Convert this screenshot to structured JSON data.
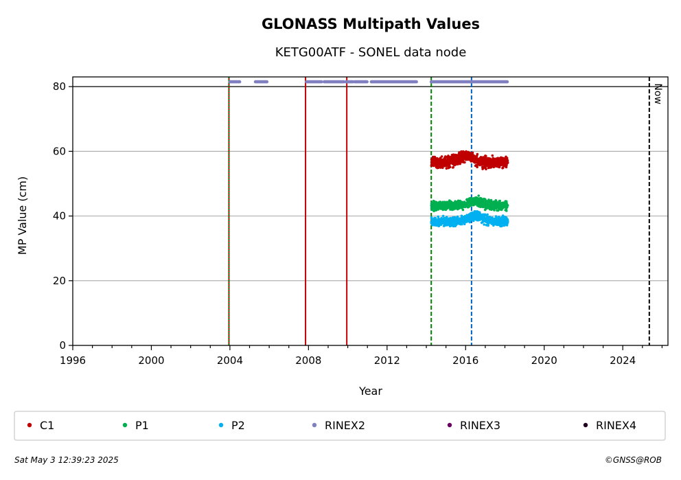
{
  "chart_data": {
    "type": "scatter",
    "title": "GLONASS Multipath Values",
    "subtitle": "KETG00ATF - SONEL data node",
    "xlabel": "Year",
    "ylabel": "MP Value (cm)",
    "xlim": [
      1996,
      2026.3
    ],
    "ylim": [
      0,
      83
    ],
    "xticks": [
      "1996",
      "2000",
      "2004",
      "2008",
      "2012",
      "2016",
      "2020",
      "2024"
    ],
    "yticks": [
      "0",
      "20",
      "40",
      "60",
      "80"
    ],
    "grid": "horizontal",
    "legend_position": "bottom",
    "series": [
      {
        "name": "C1",
        "color": "#c00000",
        "x_range": [
          2014.25,
          2018.15
        ],
        "mean": 56.5,
        "spread": 2.0,
        "peak_year": 2016,
        "peak_value": 58.5
      },
      {
        "name": "P1",
        "color": "#00b050",
        "x_range": [
          2014.25,
          2018.15
        ],
        "mean": 43.2,
        "spread": 1.6,
        "peak_year": 2016.5,
        "peak_value": 44.5
      },
      {
        "name": "P2",
        "color": "#00b0f0",
        "x_range": [
          2014.25,
          2018.15
        ],
        "mean": 38.3,
        "spread": 1.6,
        "peak_year": 2016.5,
        "peak_value": 40.0
      },
      {
        "name": "RINEX2",
        "color": "#8080c0",
        "value": 81.5,
        "segments": [
          [
            2004.0,
            2004.5
          ],
          [
            2005.3,
            2005.9
          ],
          [
            2007.9,
            2008.7
          ],
          [
            2008.8,
            2009.8
          ],
          [
            2009.9,
            2010.3
          ],
          [
            2010.35,
            2011.0
          ],
          [
            2011.2,
            2013.5
          ],
          [
            2014.25,
            2018.15
          ]
        ]
      },
      {
        "name": "RINEX3",
        "color": "#6a0060",
        "segments": []
      },
      {
        "name": "RINEX4",
        "color": "#200020",
        "segments": []
      }
    ],
    "reference_line": {
      "value": 80
    },
    "events": [
      {
        "year": 2003.95,
        "color": "#c00000",
        "style": "solid"
      },
      {
        "year": 2003.95,
        "color": "#008000",
        "style": "dotted"
      },
      {
        "year": 2007.85,
        "color": "#c00000",
        "style": "solid"
      },
      {
        "year": 2009.95,
        "color": "#c00000",
        "style": "solid"
      },
      {
        "year": 2014.25,
        "color": "#008000",
        "style": "dashed"
      },
      {
        "year": 2016.3,
        "color": "#0060c0",
        "style": "dashed"
      },
      {
        "year": 2025.35,
        "color": "#000000",
        "style": "dashed",
        "label": "Now"
      }
    ]
  },
  "footer": {
    "timestamp": "Sat May  3 12:39:23 2025",
    "credit": "©GNSS@ROB"
  }
}
